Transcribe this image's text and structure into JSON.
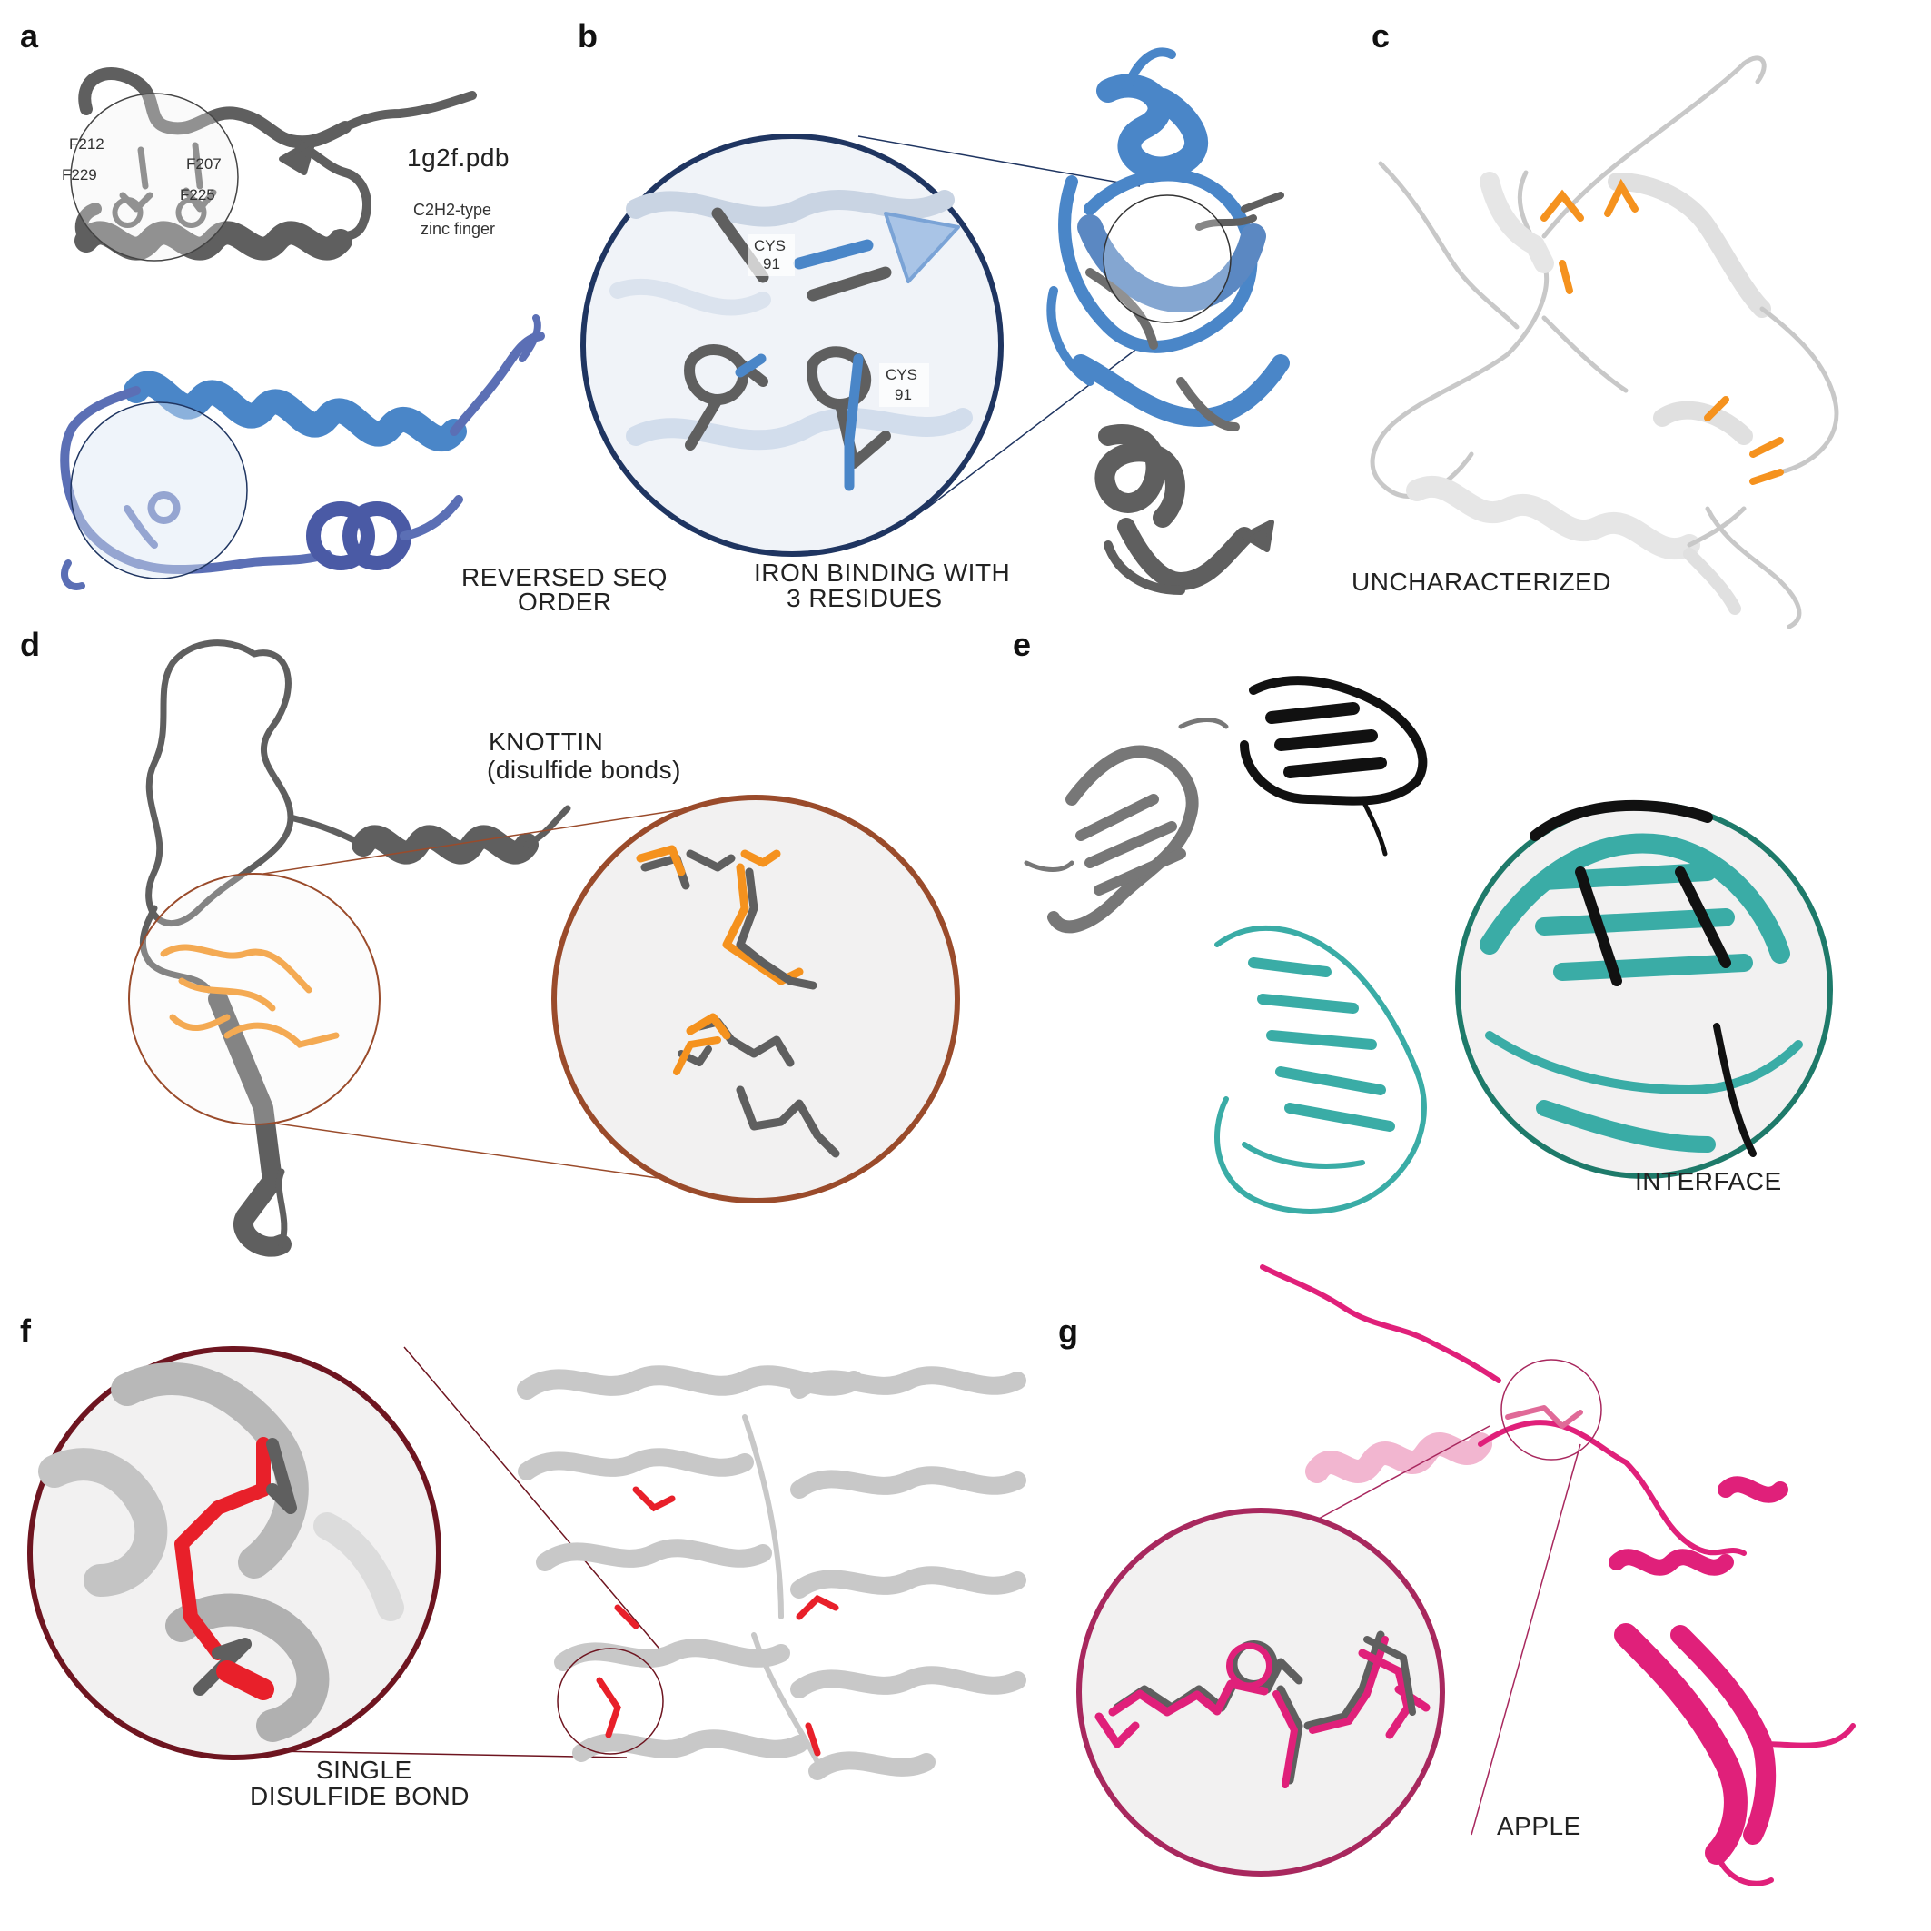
{
  "colors": {
    "gray": "#5f5f5f",
    "blue": "#4a86c8",
    "purple_blue": "#5b6fb5",
    "orange": "#f5921e",
    "teal": "#3aaca6",
    "red": "#e8202a",
    "magenta": "#e0207a",
    "navy_ring": "#1f3561",
    "brown_ring": "#9a4b2b",
    "green_ring": "#1e7a6a",
    "maroon_ring": "#6e1520",
    "pink_ring": "#a8285e"
  },
  "panels": {
    "a": {
      "letter": "a",
      "pdb_label": "1g2f.pdb",
      "type_line1": "C2H2-type",
      "type_line2": "zinc finger",
      "residues": [
        "F212",
        "F229",
        "F207",
        "F225"
      ],
      "caption_line1": "REVERSED SEQ",
      "caption_line2": "ORDER"
    },
    "b": {
      "letter": "b",
      "residue1_line1": "CYS",
      "residue1_line2": "91",
      "residue2_line1": "CYS",
      "residue2_line2": "91",
      "caption_line1": "IRON BINDING WITH",
      "caption_line2": "3 RESIDUES"
    },
    "c": {
      "letter": "c",
      "caption": "UNCHARACTERIZED"
    },
    "d": {
      "letter": "d",
      "caption_line1": "KNOTTIN",
      "caption_line2": "(disulfide bonds)"
    },
    "e": {
      "letter": "e",
      "caption": "INTERFACE"
    },
    "f": {
      "letter": "f",
      "caption_line1": "SINGLE",
      "caption_line2": "DISULFIDE BOND"
    },
    "g": {
      "letter": "g",
      "caption": "APPLE"
    }
  }
}
